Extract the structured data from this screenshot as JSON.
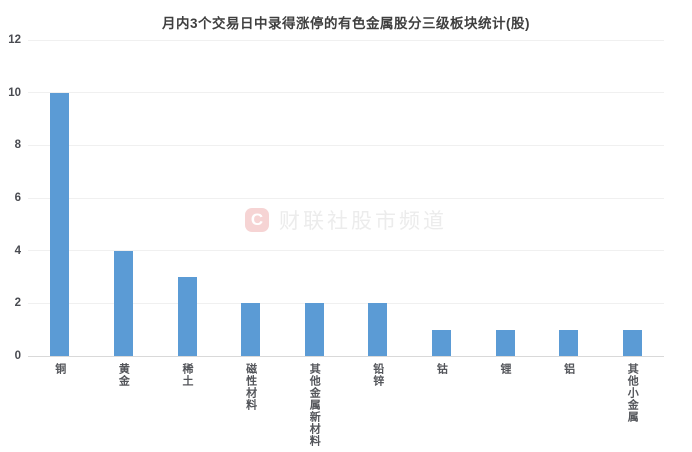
{
  "chart_data": {
    "type": "bar",
    "title": "月内3个交易日中录得涨停的有色金属股分三级板块统计(股)",
    "categories": [
      "铜",
      "黄金",
      "稀土",
      "磁性材料",
      "其他金属新材料",
      "铅锌",
      "钴",
      "锂",
      "铝",
      "其他小金属"
    ],
    "values": [
      10,
      4,
      3,
      2,
      2,
      2,
      1,
      1,
      1,
      1
    ],
    "xlabel": "",
    "ylabel": "",
    "ylim": [
      0,
      12
    ],
    "yticks": [
      0,
      2,
      4,
      6,
      8,
      10,
      12
    ],
    "grid": "horizontal-on",
    "legend": "none",
    "bar_color": "#5B9BD5"
  },
  "watermark": {
    "logo_letter": "C",
    "text": "财联社股市频道",
    "logo_bg_color": "#F6D4D4",
    "text_color": "#ECECEC"
  }
}
